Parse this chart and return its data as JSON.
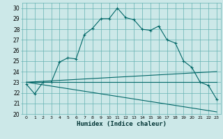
{
  "title": "",
  "xlabel": "Humidex (Indice chaleur)",
  "background_color": "#cce8e8",
  "grid_color": "#66b2b2",
  "line_color": "#006666",
  "xlim": [
    -0.5,
    23.5
  ],
  "ylim": [
    20,
    30.5
  ],
  "yticks": [
    20,
    21,
    22,
    23,
    24,
    25,
    26,
    27,
    28,
    29,
    30
  ],
  "xticks": [
    0,
    1,
    2,
    3,
    4,
    5,
    6,
    7,
    8,
    9,
    10,
    11,
    12,
    13,
    14,
    15,
    16,
    17,
    18,
    19,
    20,
    21,
    22,
    23
  ],
  "main_line_x": [
    0,
    1,
    2,
    3,
    4,
    5,
    6,
    7,
    8,
    9,
    10,
    11,
    12,
    13,
    14,
    15,
    16,
    17,
    18,
    19,
    20,
    21,
    22,
    23
  ],
  "main_line_y": [
    22.8,
    21.9,
    23.0,
    23.0,
    24.9,
    25.3,
    25.2,
    27.5,
    28.1,
    29.0,
    29.0,
    30.0,
    29.1,
    28.9,
    28.0,
    27.9,
    28.3,
    27.0,
    26.7,
    25.0,
    24.4,
    23.0,
    22.7,
    21.4
  ],
  "upper_line_x": [
    0,
    23
  ],
  "upper_line_y": [
    23.0,
    24.0
  ],
  "middle_line_x": [
    0,
    23
  ],
  "middle_line_y": [
    23.0,
    23.0
  ],
  "lower_line_x": [
    0,
    23
  ],
  "lower_line_y": [
    23.0,
    20.2
  ]
}
